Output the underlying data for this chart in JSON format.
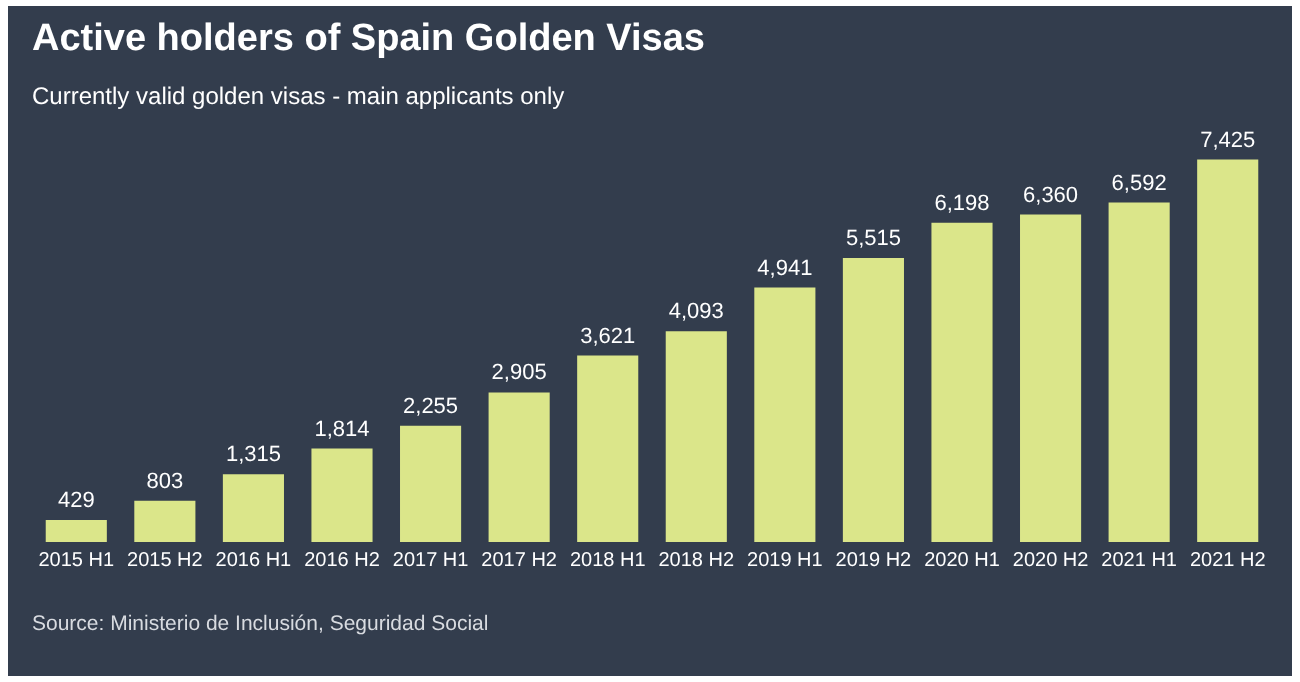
{
  "chart_data": {
    "type": "bar",
    "title": "Active holders of Spain Golden Visas",
    "subtitle": "Currently valid golden visas - main applicants only",
    "categories": [
      "2015 H1",
      "2015 H2",
      "2016 H1",
      "2016 H2",
      "2017 H1",
      "2017 H2",
      "2018 H1",
      "2018 H2",
      "2019 H1",
      "2019 H2",
      "2020 H1",
      "2020 H2",
      "2021 H1",
      "2021 H2"
    ],
    "values": [
      429,
      803,
      1315,
      1814,
      2255,
      2905,
      3621,
      4093,
      4941,
      5515,
      6198,
      6360,
      6592,
      7425
    ],
    "value_labels": [
      "429",
      "803",
      "1,315",
      "1,814",
      "2,255",
      "2,905",
      "3,621",
      "4,093",
      "4,941",
      "5,515",
      "6,198",
      "6,360",
      "6,592",
      "7,425"
    ],
    "color": "#dbe68a",
    "grid": false,
    "legend": false,
    "tick_labels": "x",
    "annotations": [
      "Source: Ministerio de Inclusión, Seguridad Social"
    ]
  }
}
